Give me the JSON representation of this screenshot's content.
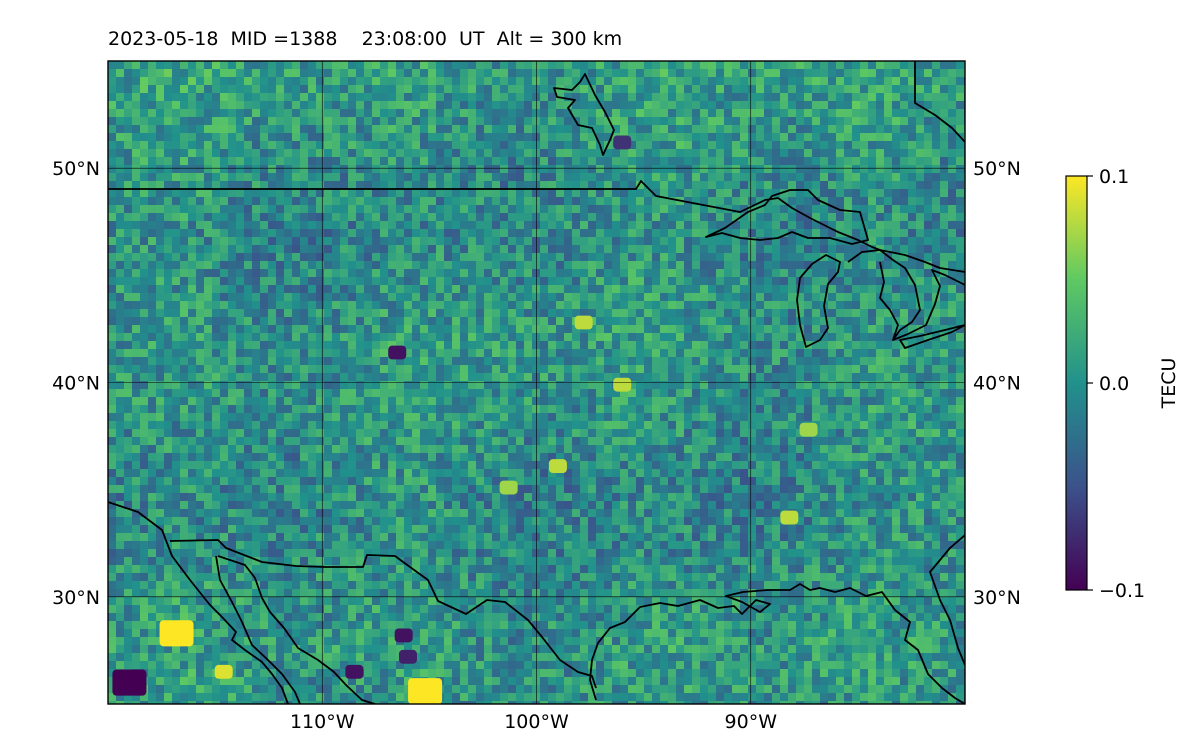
{
  "title": "2023-05-18  MID =1388    23:08:00  UT  Alt = 300 km",
  "map": {
    "lon_range": [
      -120,
      -80
    ],
    "lat_range": [
      25,
      55
    ],
    "lat_ticks": [
      {
        "value": 50,
        "label": "50°N"
      },
      {
        "value": 40,
        "label": "40°N"
      },
      {
        "value": 30,
        "label": "30°N"
      }
    ],
    "lon_ticks": [
      {
        "value": -110,
        "label": "110°W"
      },
      {
        "value": -100,
        "label": "100°W"
      },
      {
        "value": -90,
        "label": "90°W"
      }
    ],
    "gridlines": true,
    "coastlines_and_borders": true
  },
  "colorbar": {
    "label": "TECU",
    "colormap": "viridis",
    "min": -0.1,
    "max": 0.1,
    "ticks": [
      {
        "value": 0.1,
        "label": "0.1"
      },
      {
        "value": 0.0,
        "label": "0.0"
      },
      {
        "value": -0.1,
        "label": "−0.1"
      }
    ],
    "colors": [
      "#440154",
      "#3b528b",
      "#21918c",
      "#5ec962",
      "#fde725"
    ]
  },
  "highlights": [
    {
      "lat": 28.3,
      "lon": -116.8,
      "value": 0.1
    },
    {
      "lat": 25.6,
      "lon": -105.2,
      "value": 0.1
    },
    {
      "lat": 26.5,
      "lon": -114.6,
      "value": 0.09
    },
    {
      "lat": 33.7,
      "lon": -88.2,
      "value": 0.08
    },
    {
      "lat": 37.8,
      "lon": -87.3,
      "value": 0.07
    },
    {
      "lat": 42.8,
      "lon": -97.8,
      "value": 0.08
    },
    {
      "lat": 36.1,
      "lon": -99.0,
      "value": 0.08
    },
    {
      "lat": 35.1,
      "lon": -101.3,
      "value": 0.07
    },
    {
      "lat": 39.9,
      "lon": -96.0,
      "value": 0.08
    },
    {
      "lat": 26.0,
      "lon": -119.0,
      "value": -0.1
    },
    {
      "lat": 28.2,
      "lon": -106.2,
      "value": -0.09
    },
    {
      "lat": 41.4,
      "lon": -106.5,
      "value": -0.09
    },
    {
      "lat": 26.5,
      "lon": -108.5,
      "value": -0.09
    },
    {
      "lat": 27.2,
      "lon": -106.0,
      "value": -0.08
    },
    {
      "lat": 51.2,
      "lon": -96.0,
      "value": -0.07
    }
  ]
}
